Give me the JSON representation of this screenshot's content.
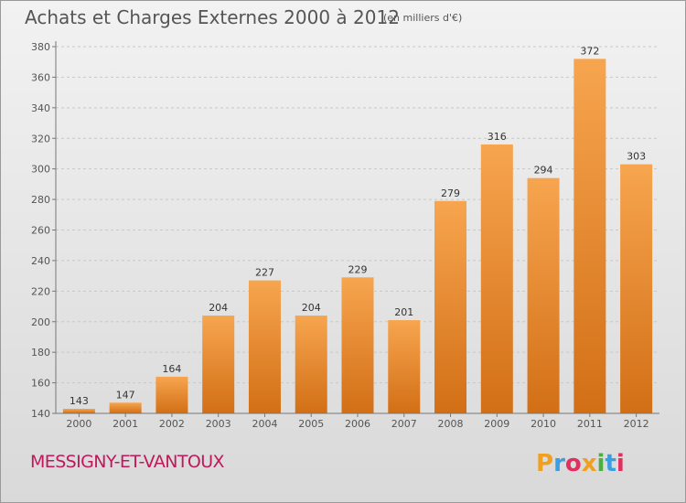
{
  "header": {
    "title": "Achats et Charges Externes 2000 à 2012",
    "unit": "(en milliers d'€)"
  },
  "footer": {
    "city": "MESSIGNY-ET-VANTOUX",
    "logo_text": "Proxiti"
  },
  "colors": {
    "bar_light": "#f7a54f",
    "bar_dark": "#d26f16",
    "city": "#c0185a",
    "grid": "#c8c8c8",
    "text": "#555555"
  },
  "chart_data": {
    "type": "bar",
    "categories": [
      "2000",
      "2001",
      "2002",
      "2003",
      "2004",
      "2005",
      "2006",
      "2007",
      "2008",
      "2009",
      "2010",
      "2011",
      "2012"
    ],
    "values": [
      143,
      147,
      164,
      204,
      227,
      204,
      229,
      201,
      279,
      316,
      294,
      372,
      303
    ],
    "data_labels": [
      "143",
      "147",
      "164",
      "204",
      "227",
      "204",
      "229",
      "201",
      "279",
      "316",
      "294",
      "372",
      "303"
    ],
    "title": "Achats et Charges Externes 2000 à 2012",
    "xlabel": "",
    "ylabel": "",
    "ylim": [
      140,
      380
    ],
    "yticks": [
      "140",
      "160",
      "180",
      "200",
      "220",
      "240",
      "260",
      "280",
      "300",
      "320",
      "340",
      "360",
      "380"
    ],
    "grid": "horizontal dashed"
  }
}
